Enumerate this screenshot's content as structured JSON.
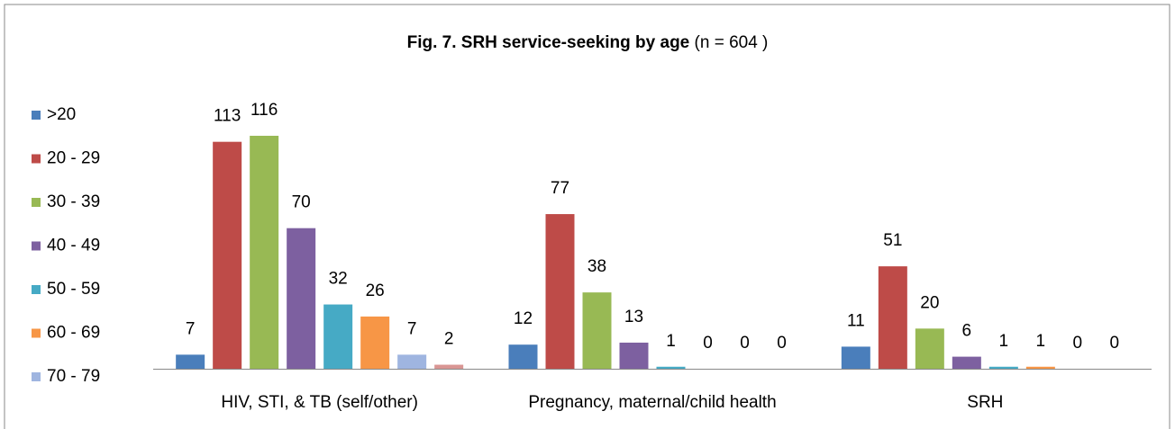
{
  "chart_data": {
    "type": "bar",
    "title": "Fig. 7. SRH service-seeking by age",
    "title_note": "(n = 604 )",
    "categories": [
      "HIV, STI, & TB (self/other)",
      "Pregnancy, maternal/child health",
      "SRH"
    ],
    "series": [
      {
        "name": ">20",
        "color": "#4a7ebb",
        "values": [
          7,
          12,
          11
        ]
      },
      {
        "name": "20 - 29",
        "color": "#be4b48",
        "values": [
          113,
          77,
          51
        ]
      },
      {
        "name": "30 - 39",
        "color": "#98b954",
        "values": [
          116,
          38,
          20
        ]
      },
      {
        "name": "40 - 49",
        "color": "#7d60a0",
        "values": [
          70,
          13,
          6
        ]
      },
      {
        "name": "50 - 59",
        "color": "#46aac5",
        "values": [
          32,
          1,
          1
        ]
      },
      {
        "name": "60 - 69",
        "color": "#f79646",
        "values": [
          26,
          0,
          1
        ]
      },
      {
        "name": "70 - 79",
        "color": "#9fb5e0",
        "values": [
          7,
          0,
          0
        ]
      },
      {
        "color": "#d99694",
        "values": [
          2,
          0,
          0
        ]
      }
    ],
    "legend": "left"
  }
}
